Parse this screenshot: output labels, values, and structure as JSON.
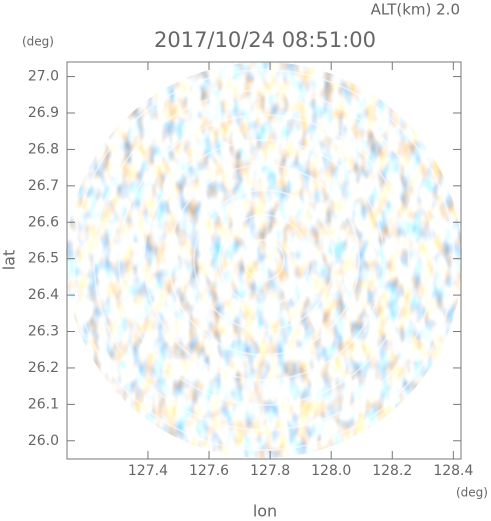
{
  "chart_data": {
    "type": "image",
    "title": "2017/10/24 08:51:00",
    "subtitle": "ALT(km) 2.0",
    "x_label": "lon",
    "y_label": "lat",
    "x_unit": "(deg)",
    "y_unit": "(deg)",
    "xlim": [
      127.135,
      128.425
    ],
    "ylim": [
      25.95,
      27.04
    ],
    "xticks": [
      127.4,
      127.6,
      127.8,
      {
        "value": 128,
        "label": "128.0"
      },
      128.2,
      128.4
    ],
    "yticks": [
      {
        "value": 26,
        "label": "26.0"
      },
      26.1,
      26.2,
      26.3,
      26.4,
      26.5,
      26.6,
      26.7,
      26.8,
      26.9,
      {
        "value": 27,
        "label": "27.0"
      }
    ]
  }
}
